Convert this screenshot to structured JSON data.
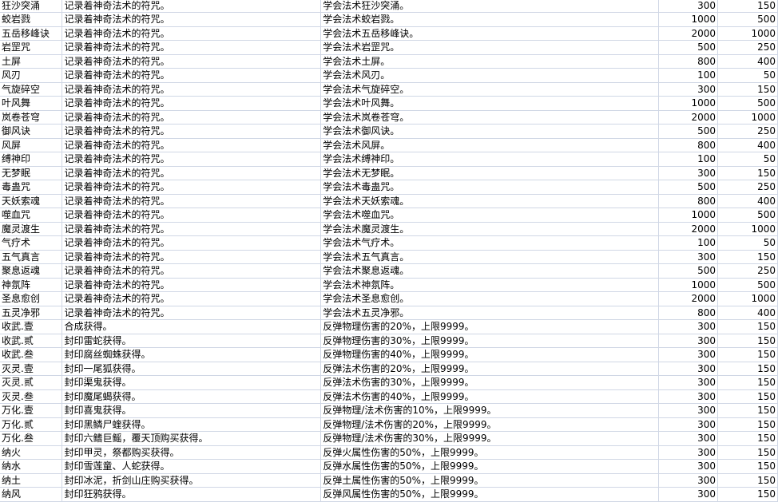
{
  "rows": [
    [
      "狂沙突涌",
      "记录着神奇法术的符咒。",
      "学会法术狂沙突涌。",
      "300",
      "150"
    ],
    [
      "蛟岩戮",
      "记录着神奇法术的符咒。",
      "学会法术蛟岩戮。",
      "1000",
      "500"
    ],
    [
      "五岳移峰诀",
      "记录着神奇法术的符咒。",
      "学会法术五岳移峰诀。",
      "2000",
      "1000"
    ],
    [
      "岩罡咒",
      "记录着神奇法术的符咒。",
      "学会法术岩罡咒。",
      "500",
      "250"
    ],
    [
      "土屏",
      "记录着神奇法术的符咒。",
      "学会法术土屏。",
      "800",
      "400"
    ],
    [
      "风刃",
      "记录着神奇法术的符咒。",
      "学会法术风刃。",
      "100",
      "50"
    ],
    [
      "气旋碎空",
      "记录着神奇法术的符咒。",
      "学会法术气旋碎空。",
      "300",
      "150"
    ],
    [
      "叶风舞",
      "记录着神奇法术的符咒。",
      "学会法术叶风舞。",
      "1000",
      "500"
    ],
    [
      "岚卷苍穹",
      "记录着神奇法术的符咒。",
      "学会法术岚卷苍穹。",
      "2000",
      "1000"
    ],
    [
      "御风诀",
      "记录着神奇法术的符咒。",
      "学会法术御风诀。",
      "500",
      "250"
    ],
    [
      "风屏",
      "记录着神奇法术的符咒。",
      "学会法术风屏。",
      "800",
      "400"
    ],
    [
      "缚神印",
      "记录着神奇法术的符咒。",
      "学会法术缚神印。",
      "100",
      "50"
    ],
    [
      "无梦眠",
      "记录着神奇法术的符咒。",
      "学会法术无梦眠。",
      "300",
      "150"
    ],
    [
      "毒蛊咒",
      "记录着神奇法术的符咒。",
      "学会法术毒蛊咒。",
      "500",
      "250"
    ],
    [
      "天妖索魂",
      "记录着神奇法术的符咒。",
      "学会法术天妖索魂。",
      "800",
      "400"
    ],
    [
      "噬血咒",
      "记录着神奇法术的符咒。",
      "学会法术噬血咒。",
      "1000",
      "500"
    ],
    [
      "魔灵渡生",
      "记录着神奇法术的符咒。",
      "学会法术魔灵渡生。",
      "2000",
      "1000"
    ],
    [
      "气疗术",
      "记录着神奇法术的符咒。",
      "学会法术气疗术。",
      "100",
      "50"
    ],
    [
      "五气真言",
      "记录着神奇法术的符咒。",
      "学会法术五气真言。",
      "300",
      "150"
    ],
    [
      "聚息返魂",
      "记录着神奇法术的符咒。",
      "学会法术聚息返魂。",
      "500",
      "250"
    ],
    [
      "神氛阵",
      "记录着神奇法术的符咒。",
      "学会法术神氛阵。",
      "1000",
      "500"
    ],
    [
      "圣息愈创",
      "记录着神奇法术的符咒。",
      "学会法术圣息愈创。",
      "2000",
      "1000"
    ],
    [
      "五灵净邪",
      "记录着神奇法术的符咒。",
      "学会法术五灵净邪。",
      "800",
      "400"
    ],
    [
      "收武.壹",
      "合成获得。",
      "反弹物理伤害的20%，上限9999。",
      "300",
      "150"
    ],
    [
      "收武.贰",
      "封印雷蛇获得。",
      "反弹物理伤害的30%，上限9999。",
      "300",
      "150"
    ],
    [
      "收武.叁",
      "封印腐丝蜘蛛获得。",
      "反弹物理伤害的40%，上限9999。",
      "300",
      "150"
    ],
    [
      "灭灵.壹",
      "封印一尾狐获得。",
      "反弹法术伤害的20%，上限9999。",
      "300",
      "150"
    ],
    [
      "灭灵.贰",
      "封印渠鬼获得。",
      "反弹法术伤害的30%，上限9999。",
      "300",
      "150"
    ],
    [
      "灭灵.叁",
      "封印魔尾蝎获得。",
      "反弹法术伤害的40%，上限9999。",
      "300",
      "150"
    ],
    [
      "万化.壹",
      "封印喜鬼获得。",
      "反弹物理/法术伤害的10%，上限9999。",
      "300",
      "150"
    ],
    [
      "万化.贰",
      "封印黑鳞尸蝰获得。",
      "反弹物理/法术伤害的20%，上限9999。",
      "300",
      "150"
    ],
    [
      "万化.叁",
      "封印六鳍巨鳐，覆天顶购买获得。",
      "反弹物理/法术伤害的30%，上限9999。",
      "300",
      "150"
    ],
    [
      "纳火",
      "封印甲灵，祭都购买获得。",
      "反弹火属性伤害的50%，上限9999。",
      "300",
      "150"
    ],
    [
      "纳水",
      "封印雪莲童、人蛇获得。",
      "反弹水属性伤害的50%，上限9999。",
      "300",
      "150"
    ],
    [
      "纳土",
      "封印冰泥，折剑山庄购买获得。",
      "反弹土属性伤害的50%，上限9999。",
      "300",
      "150"
    ],
    [
      "纳风",
      "封印狂鸦获得。",
      "反弹风属性伤害的50%，上限9999。",
      "300",
      "150"
    ]
  ],
  "colors": {
    "gridline": "#d0d7e5"
  }
}
